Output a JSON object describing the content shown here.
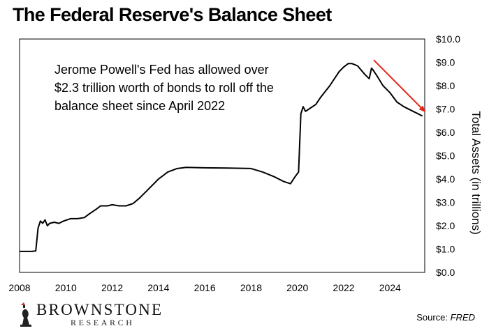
{
  "title": "The Federal Reserve's Balance Sheet",
  "annotation": [
    "Jerome Powell's Fed has allowed over",
    "$2.3 trillion worth of bonds to roll off the",
    "balance sheet since April 2022"
  ],
  "source": {
    "label": "Source: ",
    "name": "FRED"
  },
  "brand": {
    "name": "BROWNSTONE",
    "sub": "RESEARCH",
    "logo_icon": "figure-with-torch-icon"
  },
  "colors": {
    "line": "#000000",
    "arrow": "#e8221a"
  },
  "chart_data": {
    "type": "line",
    "title": "The Federal Reserve's Balance Sheet",
    "xlabel": "",
    "ylabel": "Total Assets (in trillions)",
    "xlim": [
      2008,
      2025.5
    ],
    "ylim": [
      0,
      10
    ],
    "grid": false,
    "x_ticks": [
      2008,
      2010,
      2012,
      2014,
      2016,
      2018,
      2020,
      2022,
      2024
    ],
    "x_tick_labels": [
      "2008",
      "2010",
      "2012",
      "2014",
      "2016",
      "2018",
      "2020",
      "2022",
      "2024"
    ],
    "y_ticks": [
      0,
      1,
      2,
      3,
      4,
      5,
      6,
      7,
      8,
      9,
      10
    ],
    "y_tick_labels": [
      "$0.0",
      "$1.0",
      "$2.0",
      "$3.0",
      "$4.0",
      "$5.0",
      "$6.0",
      "$7.0",
      "$8.0",
      "$9.0",
      "$10.0"
    ],
    "series": [
      {
        "name": "",
        "x": [
          2008.0,
          2008.5,
          2008.7,
          2008.8,
          2008.9,
          2009.0,
          2009.1,
          2009.2,
          2009.3,
          2009.5,
          2009.7,
          2009.9,
          2010.2,
          2010.5,
          2010.8,
          2011.0,
          2011.3,
          2011.5,
          2011.8,
          2012.0,
          2012.3,
          2012.6,
          2012.9,
          2013.2,
          2013.6,
          2014.0,
          2014.4,
          2014.8,
          2015.2,
          2016.0,
          2017.0,
          2017.6,
          2018.0,
          2018.5,
          2019.0,
          2019.4,
          2019.7,
          2019.9,
          2020.05,
          2020.15,
          2020.25,
          2020.35,
          2020.5,
          2020.8,
          2021.0,
          2021.4,
          2021.8,
          2022.0,
          2022.2,
          2022.35,
          2022.6,
          2022.9,
          2023.1,
          2023.2,
          2023.25,
          2023.45,
          2023.7,
          2024.0,
          2024.3,
          2024.6,
          2024.9,
          2025.2,
          2025.4
        ],
        "y": [
          0.9,
          0.9,
          0.92,
          1.9,
          2.2,
          2.1,
          2.25,
          2.0,
          2.1,
          2.15,
          2.1,
          2.2,
          2.3,
          2.3,
          2.35,
          2.5,
          2.7,
          2.85,
          2.85,
          2.9,
          2.85,
          2.85,
          2.95,
          3.2,
          3.6,
          4.0,
          4.3,
          4.45,
          4.5,
          4.48,
          4.47,
          4.46,
          4.45,
          4.3,
          4.1,
          3.9,
          3.8,
          4.1,
          4.3,
          6.8,
          7.1,
          6.9,
          7.0,
          7.2,
          7.5,
          8.0,
          8.6,
          8.8,
          8.95,
          8.95,
          8.85,
          8.5,
          8.3,
          8.75,
          8.7,
          8.4,
          8.0,
          7.7,
          7.3,
          7.1,
          6.95,
          6.8,
          6.7
        ]
      }
    ],
    "arrow": {
      "from": [
        2023.3,
        9.1
      ],
      "to": [
        2025.5,
        6.9
      ]
    }
  }
}
